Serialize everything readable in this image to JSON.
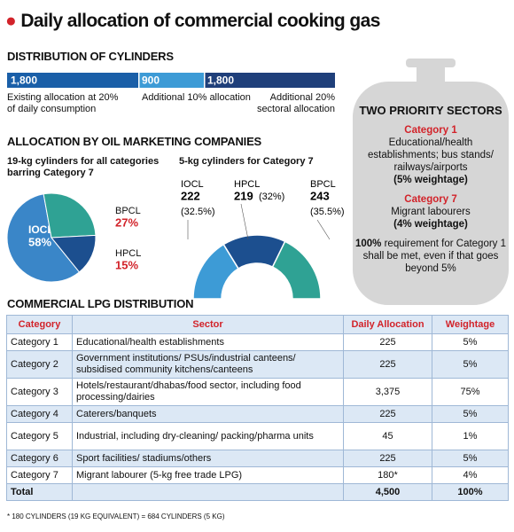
{
  "title": "Daily allocation of commercial cooking gas",
  "distribution_heading": "DISTRIBUTION OF CYLINDERS",
  "omc_heading": "ALLOCATION BY OIL MARKETING COMPANIES",
  "chart_data": [
    {
      "type": "hbar-stack",
      "series": [
        {
          "name": "Existing allocation at 20% of daily consumption",
          "color": "#1a5fa8",
          "values": [
            1800
          ],
          "value_labels": [
            "1,800"
          ]
        },
        {
          "name": "Additional 10% allocation",
          "color": "#3d9bd6",
          "values": [
            900
          ],
          "value_labels": [
            "900"
          ]
        },
        {
          "name": "Additional 20% sectoral allocation",
          "color": "#1f3f7a",
          "values": [
            1800
          ],
          "value_labels": [
            "1,800"
          ]
        }
      ]
    },
    {
      "type": "pie",
      "title": "19-kg cylinders for all categories barring Category 7",
      "categories": [
        "IOCL",
        "BPCL",
        "HPCL"
      ],
      "values": [
        58,
        27,
        15
      ],
      "value_labels": [
        "58%",
        "27%",
        "15%"
      ],
      "colors": [
        "#3a86c8",
        "#2fa294",
        "#1c4f8f"
      ]
    },
    {
      "type": "half-donut",
      "title": "5-kg cylinders for Category 7",
      "categories": [
        "IOCL",
        "HPCL",
        "BPCL"
      ],
      "values": [
        222,
        219,
        243
      ],
      "share_labels": [
        "(32.5%)",
        "(32%)",
        "(35.5%)"
      ],
      "colors": [
        "#3d9bd6",
        "#1c4f8f",
        "#2fa294"
      ]
    }
  ],
  "priority": {
    "title": "TWO PRIORITY SECTORS",
    "items": [
      {
        "label": "Category 1",
        "text": "Educational/health establishments; bus stands/ railways/airports",
        "weight": "(5% weightage)"
      },
      {
        "label": "Category 7",
        "text": "Migrant labourers",
        "weight": "(4% weightage)"
      }
    ],
    "note_bold": "100%",
    "note": "requirement for Category 1 shall be met, even if that goes beyond 5%"
  },
  "table": {
    "title": "COMMERCIAL LPG DISTRIBUTION",
    "columns": [
      "Category",
      "Sector",
      "Daily Allocation",
      "Weightage"
    ],
    "rows": [
      [
        "Category 1",
        "Educational/health establishments",
        "225",
        "5%"
      ],
      [
        "Category 2",
        "Government institutions/ PSUs/industrial canteens/ subsidised community kitchens/canteens",
        "225",
        "5%"
      ],
      [
        "Category 3",
        "Hotels/restaurant/dhabas/food sector, including food processing/dairies",
        "3,375",
        "75%"
      ],
      [
        "Category 4",
        "Caterers/banquets",
        "225",
        "5%"
      ],
      [
        "Category 5",
        "Industrial, including dry-cleaning/ packing/pharma units",
        "45",
        "1%"
      ],
      [
        "Category 6",
        "Sport facilities/ stadiums/others",
        "225",
        "5%"
      ],
      [
        "Category 7",
        "Migrant labourer (5-kg free trade LPG)",
        "180*",
        "4%"
      ],
      [
        "Total",
        "",
        "4,500",
        "100%"
      ]
    ],
    "footnote": "* 180 CYLINDERS (19 KG EQUIVALENT) = 684 CYLINDERS (5 KG)"
  }
}
